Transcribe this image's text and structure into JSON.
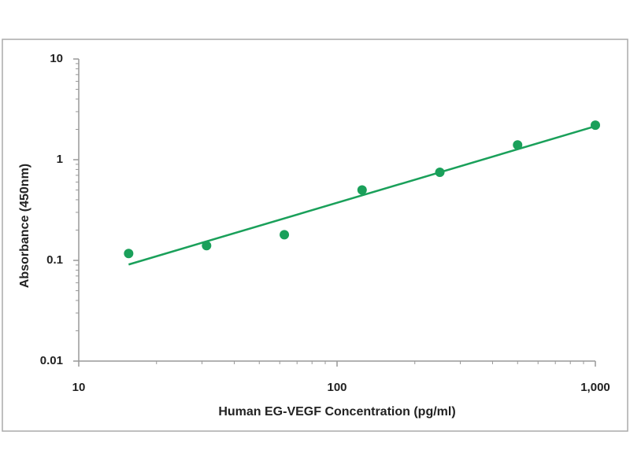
{
  "chart_data": {
    "type": "scatter",
    "x_label": "Human EG-VEGF  Concentration (pg/ml)",
    "y_label": "Absorbance (450nm)",
    "x": [
      15.6,
      31.25,
      62.5,
      125,
      250,
      500,
      1000
    ],
    "values": [
      0.117,
      0.14,
      0.18,
      0.5,
      0.75,
      1.4,
      2.2
    ],
    "color": "#1aa05a",
    "fit_line": {
      "x": [
        15.6,
        1000
      ],
      "values": [
        0.091,
        2.15
      ],
      "color": "#1aa05a"
    },
    "log_x": true,
    "log_y": true,
    "xlim": [
      10,
      1000
    ],
    "ylim": [
      0.01,
      10
    ],
    "xticks": [
      10,
      100,
      {
        "value": 1000,
        "label": "1,000"
      }
    ],
    "xminor": [
      20,
      30,
      40,
      50,
      60,
      70,
      80,
      90,
      200,
      300,
      400,
      500,
      600,
      700,
      800,
      900
    ],
    "yticks": [
      0.01,
      0.1,
      1,
      10
    ],
    "yminor": [
      0.02,
      0.03,
      0.04,
      0.05,
      0.06,
      0.07,
      0.08,
      0.09,
      0.2,
      0.3,
      0.4,
      0.5,
      0.6,
      0.7,
      0.8,
      0.9,
      2,
      3,
      4,
      5,
      6,
      7,
      8,
      9
    ]
  }
}
